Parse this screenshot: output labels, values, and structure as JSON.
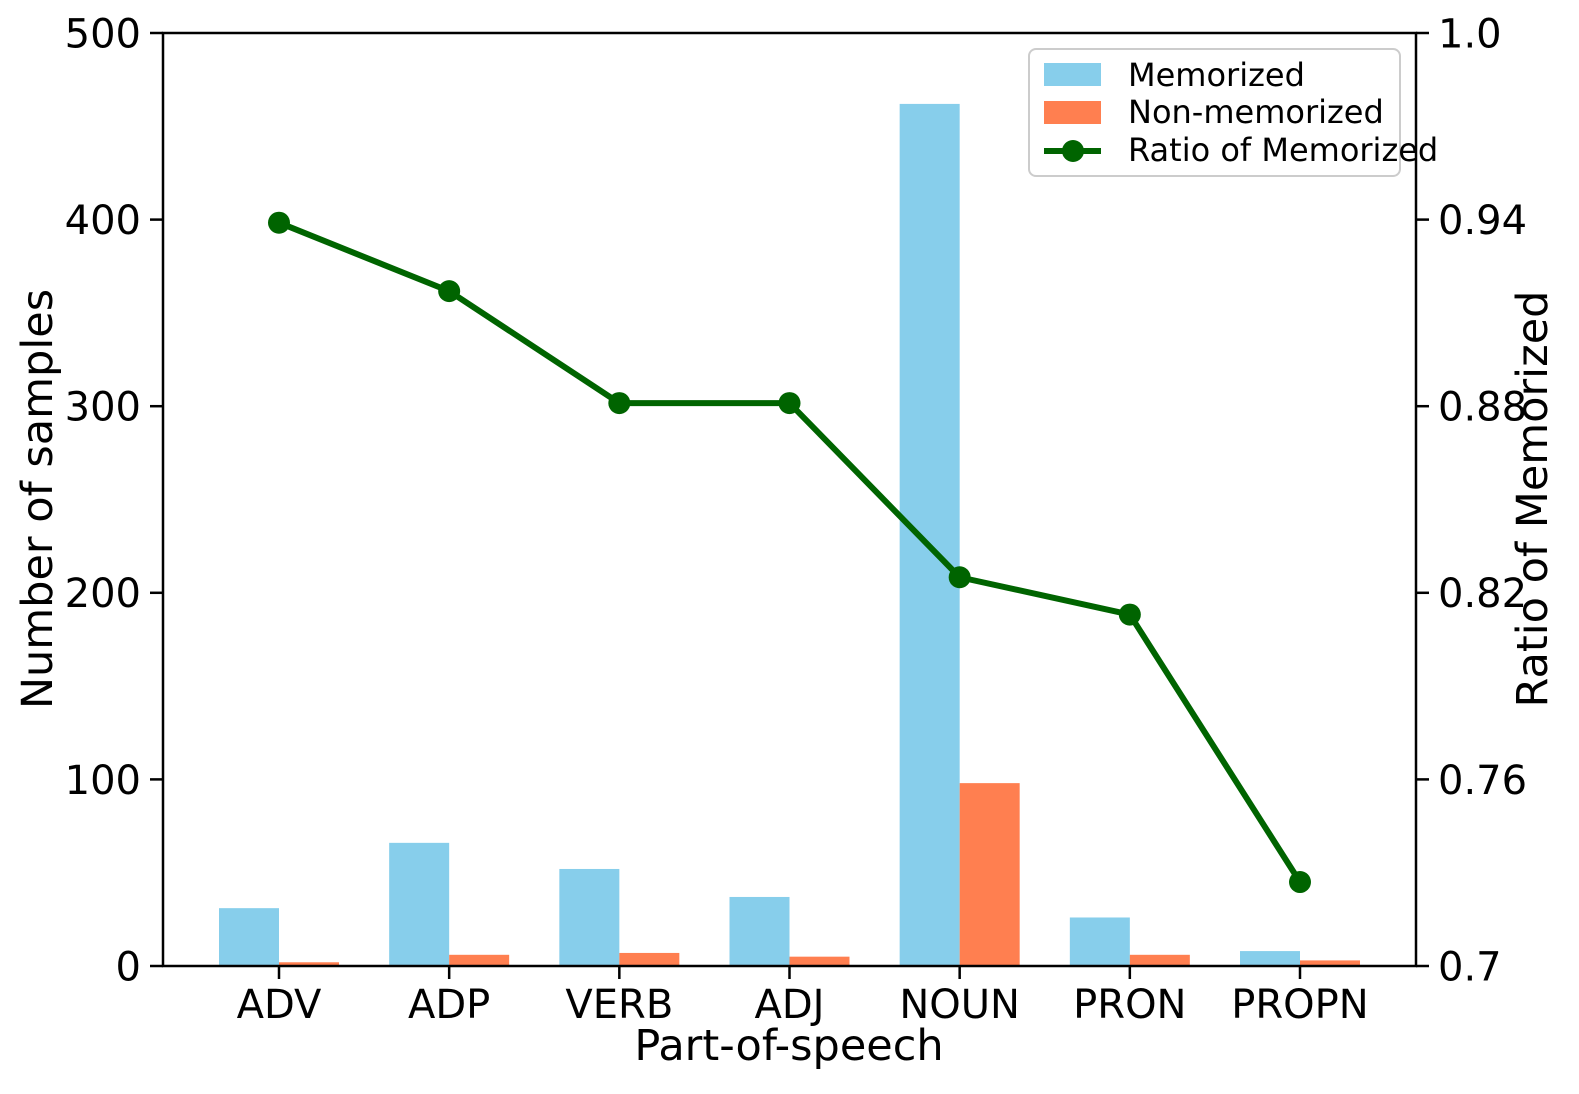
{
  "figure": {
    "background": "#ffffff"
  },
  "chart_data": {
    "type": "bar",
    "title": "",
    "xlabel": "Part-of-speech",
    "ylabel_left": "Number of samples",
    "ylabel_right": "Ratio of Memorized",
    "categories": [
      "ADV",
      "ADP",
      "VERB",
      "ADJ",
      "NOUN",
      "PRON",
      "PROPN"
    ],
    "series": [
      {
        "name": "Memorized",
        "type": "bar",
        "axis": "left",
        "color": "#87CEEB",
        "values": [
          31,
          66,
          52,
          37,
          462,
          26,
          8
        ]
      },
      {
        "name": "Non-memorized",
        "type": "bar",
        "axis": "left",
        "color": "#FF7F50",
        "values": [
          2,
          6,
          7,
          5,
          98,
          6,
          3
        ]
      },
      {
        "name": "Ratio of Memorized",
        "type": "line",
        "axis": "right",
        "color": "#006400",
        "marker": "circle",
        "values": [
          0.939,
          0.917,
          0.881,
          0.881,
          0.825,
          0.813,
          0.727
        ]
      }
    ],
    "ylim_left": [
      0,
      500
    ],
    "yticks_left": [
      "0",
      "100",
      "200",
      "300",
      "400",
      "500"
    ],
    "ylim_right": [
      0.7,
      1.0
    ],
    "yticks_right": [
      "0.7",
      "0.76",
      "0.82",
      "0.88",
      "0.94",
      "1.0"
    ],
    "grid": false,
    "legend_position": "upper right"
  }
}
